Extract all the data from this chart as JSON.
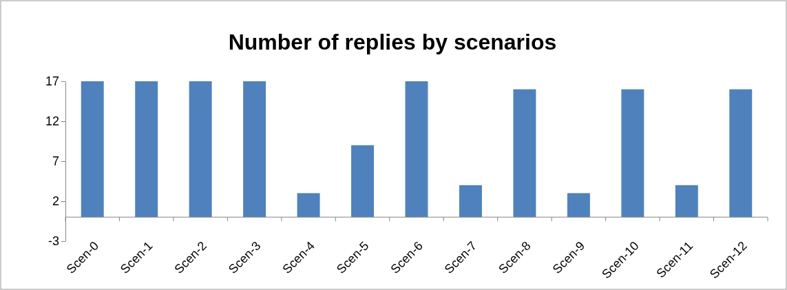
{
  "chart_data": {
    "type": "bar",
    "title": "Number of replies by scenarios",
    "categories": [
      "Scen-0",
      "Scen-1",
      "Scen-2",
      "Scen-3",
      "Scen-4",
      "Scen-5",
      "Scen-6",
      "Scen-7",
      "Scen-8",
      "Scen-9",
      "Scen-10",
      "Scen-11",
      "Scen-12"
    ],
    "values": [
      17,
      17,
      17,
      17,
      3,
      9,
      17,
      4,
      16,
      3,
      16,
      4,
      16
    ],
    "color": "#4f81bd",
    "ylim": [
      -3,
      17
    ],
    "yticks": [
      -3,
      2,
      7,
      12,
      17
    ]
  }
}
